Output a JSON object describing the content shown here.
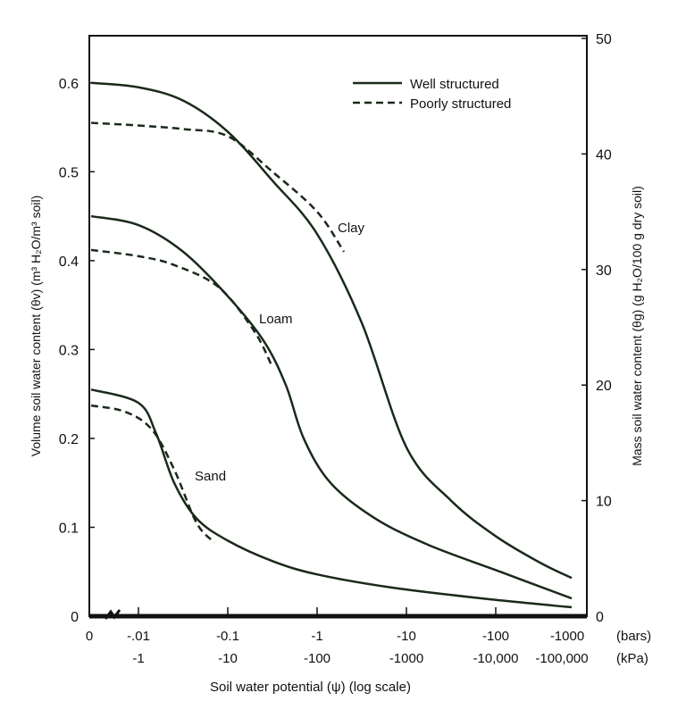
{
  "chart_data": {
    "type": "line",
    "xlabel": "Soil water potential (ψ) (log scale)",
    "ylabel": "Volume soil water content (θv) (m³ H₂O/m³ soil)",
    "ylabel_right": "Mass soil water content (θg) (g H₂O/100 g dry soil)",
    "x_ticks_bars": [
      "0",
      "-.01",
      "-0.1",
      "-1",
      "-10",
      "-100",
      "-1000"
    ],
    "x_ticks_kpa": [
      "",
      "-1",
      "-10",
      "-100",
      "-1000",
      "-10,000",
      "-100,000"
    ],
    "x_unit_bars": "(bars)",
    "x_unit_kpa": "(kPa)",
    "x_tick_log10": [
      -2.55,
      -2,
      -1,
      0,
      1,
      2,
      3
    ],
    "y_ticks": [
      "0",
      "0.1",
      "0.2",
      "0.3",
      "0.4",
      "0.5",
      "0.6"
    ],
    "y_right_ticks": [
      "0",
      "10",
      "20",
      "30",
      "40",
      "50"
    ],
    "ylim": [
      0,
      0.65
    ],
    "y_right_lim": [
      0,
      50
    ],
    "legend": {
      "placement": "top-right",
      "entries": [
        {
          "label": "Well structured",
          "style": "solid"
        },
        {
          "label": "Poorly structured",
          "style": "dashed"
        }
      ]
    },
    "annotations": [
      "Clay",
      "Loam",
      "Sand"
    ],
    "series": [
      {
        "name": "Clay well structured",
        "style": "solid",
        "points": [
          [
            -2.55,
            0.6
          ],
          [
            -2,
            0.595
          ],
          [
            -1.5,
            0.58
          ],
          [
            -1,
            0.545
          ],
          [
            -0.5,
            0.49
          ],
          [
            0,
            0.43
          ],
          [
            0.5,
            0.33
          ],
          [
            1,
            0.19
          ],
          [
            1.5,
            0.13
          ],
          [
            2,
            0.09
          ],
          [
            2.5,
            0.06
          ],
          [
            2.85,
            0.043
          ]
        ]
      },
      {
        "name": "Clay poorly structured",
        "style": "dashed",
        "points": [
          [
            -2.55,
            0.555
          ],
          [
            -2,
            0.552
          ],
          [
            -1.5,
            0.548
          ],
          [
            -1,
            0.54
          ],
          [
            -0.5,
            0.5
          ],
          [
            0,
            0.455
          ],
          [
            0.3,
            0.41
          ]
        ]
      },
      {
        "name": "Loam well structured",
        "style": "solid",
        "points": [
          [
            -2.55,
            0.45
          ],
          [
            -2,
            0.44
          ],
          [
            -1.5,
            0.41
          ],
          [
            -1,
            0.36
          ],
          [
            -0.6,
            0.31
          ],
          [
            -0.35,
            0.26
          ],
          [
            -0.15,
            0.2
          ],
          [
            0.15,
            0.15
          ],
          [
            0.65,
            0.11
          ],
          [
            1.25,
            0.08
          ],
          [
            2.05,
            0.05
          ],
          [
            2.85,
            0.02
          ]
        ]
      },
      {
        "name": "Loam poorly structured",
        "style": "dashed",
        "points": [
          [
            -2.55,
            0.412
          ],
          [
            -2,
            0.405
          ],
          [
            -1.6,
            0.395
          ],
          [
            -1.1,
            0.37
          ],
          [
            -0.7,
            0.32
          ],
          [
            -0.5,
            0.28
          ]
        ]
      },
      {
        "name": "Sand well structured",
        "style": "solid",
        "points": [
          [
            -2.55,
            0.255
          ],
          [
            -2,
            0.24
          ],
          [
            -1.8,
            0.205
          ],
          [
            -1.6,
            0.15
          ],
          [
            -1.35,
            0.11
          ],
          [
            -1,
            0.085
          ],
          [
            -0.5,
            0.062
          ],
          [
            0,
            0.047
          ],
          [
            0.85,
            0.032
          ],
          [
            1.85,
            0.02
          ],
          [
            2.85,
            0.01
          ]
        ]
      },
      {
        "name": "Sand poorly structured",
        "style": "dashed",
        "points": [
          [
            -2.55,
            0.237
          ],
          [
            -2.15,
            0.23
          ],
          [
            -1.85,
            0.21
          ],
          [
            -1.6,
            0.165
          ],
          [
            -1.35,
            0.105
          ],
          [
            -1.15,
            0.083
          ]
        ]
      }
    ]
  }
}
